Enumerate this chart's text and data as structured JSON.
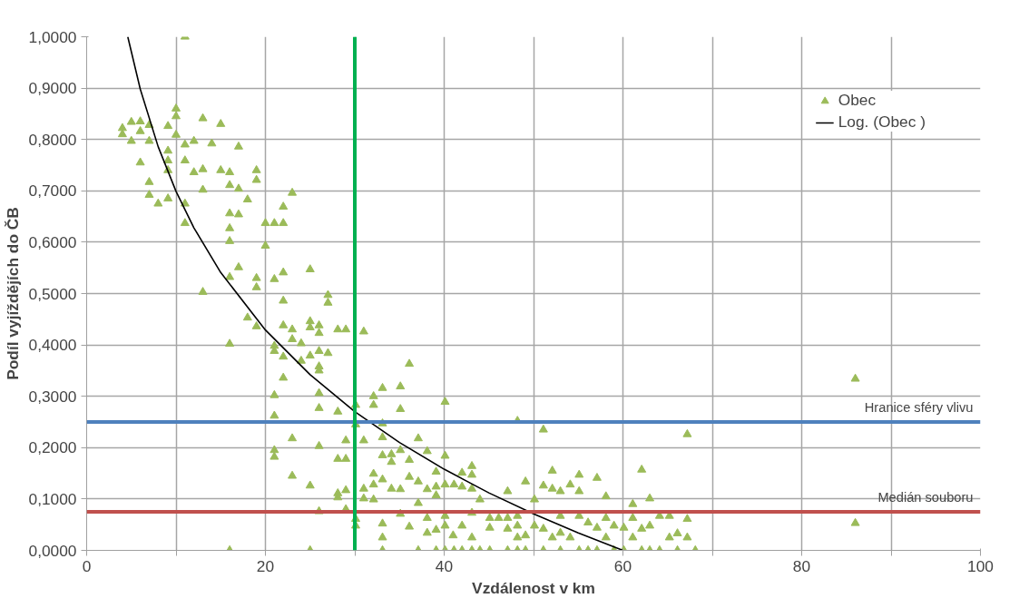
{
  "chart_data": {
    "type": "scatter",
    "xlabel": "Vzdálenost v km",
    "ylabel": "Podíl vyjíždějích do ČB",
    "xlim": [
      0,
      100
    ],
    "ylim": [
      0,
      1
    ],
    "xticks": [
      0,
      {
        "value": 10,
        "label": null
      },
      20,
      {
        "value": 30,
        "label": null
      },
      40,
      {
        "value": 50,
        "label": null
      },
      60,
      {
        "value": 70,
        "label": null
      },
      80,
      {
        "value": 90,
        "label": null
      },
      100
    ],
    "yticks": [
      {
        "value": 0,
        "label": "0,0000"
      },
      {
        "value": 0.1,
        "label": "0,1000"
      },
      {
        "value": 0.2,
        "label": "0,2000"
      },
      {
        "value": 0.3,
        "label": "0,3000"
      },
      {
        "value": 0.4,
        "label": "0,4000"
      },
      {
        "value": 0.5,
        "label": "0,5000"
      },
      {
        "value": 0.6,
        "label": "0,6000"
      },
      {
        "value": 0.7,
        "label": "0,7000"
      },
      {
        "value": 0.8,
        "label": "0,8000"
      },
      {
        "value": 0.9,
        "label": "0,9000"
      },
      {
        "value": 1,
        "label": "1,0000"
      }
    ],
    "grid": true,
    "legend": "top right",
    "series": [
      {
        "name": "Obec",
        "type": "scatter",
        "marker": "triangle",
        "color": "#9bbb59",
        "x": [
          11,
          4,
          5,
          6,
          4,
          5,
          6,
          7,
          7,
          10,
          10,
          9.1,
          10,
          13,
          15,
          11,
          12,
          14,
          17,
          6,
          9.1,
          9.1,
          9.1,
          11,
          12,
          13,
          15,
          16,
          19,
          19,
          7,
          13,
          16,
          17,
          18,
          23,
          7,
          8,
          9.1,
          11,
          11,
          16,
          17,
          22,
          20,
          21,
          22,
          16,
          16,
          20,
          25,
          17,
          16,
          19,
          19,
          22,
          21,
          13,
          22,
          27,
          27,
          18,
          19,
          22,
          23,
          25,
          25,
          26,
          26,
          28.1,
          29,
          31,
          16,
          21,
          21,
          23,
          24,
          22,
          24,
          25,
          26,
          27,
          26,
          26,
          22,
          21,
          26,
          26,
          28.1,
          30.1,
          21,
          30.1,
          23,
          26,
          29,
          31,
          21,
          21,
          28.1,
          29,
          23,
          25,
          28.1,
          28.1,
          29,
          31,
          31,
          26,
          29,
          30.1,
          30.1,
          16,
          25,
          36.1,
          33.1,
          35.1,
          32.1,
          32.1,
          35.1,
          40.1,
          33.1,
          48.2,
          51.1,
          67.2,
          33.1,
          37.1,
          33.1,
          34.1,
          34.1,
          35.1,
          36.1,
          38.1,
          40.1,
          43.1,
          43.1,
          42,
          39.1,
          32.1,
          33.1,
          36.1,
          37.1,
          52.1,
          55.1,
          57.1,
          62.1,
          49.1,
          51.1,
          54.1,
          32.1,
          34.1,
          35.1,
          38.1,
          39.1,
          40.1,
          41.1,
          42,
          43.1,
          47.1,
          52.1,
          53,
          55.1,
          32.1,
          37.1,
          39.1,
          44,
          50.1,
          58.1,
          63,
          61.1,
          35.1,
          38.1,
          40.1,
          43.1,
          45.1,
          46.1,
          47.1,
          48.2,
          53,
          55.1,
          58.1,
          61.1,
          64.1,
          67.2,
          65.2,
          33.1,
          36.1,
          38.1,
          39.1,
          40.1,
          42,
          45.1,
          47.1,
          48.2,
          50.1,
          51.1,
          53,
          56.1,
          57.1,
          59,
          60.1,
          62.1,
          63,
          66.1,
          33.1,
          41,
          43.1,
          48.2,
          49.1,
          52.1,
          54.1,
          58.1,
          61.1,
          65.2,
          67.2,
          33.1,
          37.1,
          39.1,
          40.1,
          41.1,
          42,
          43.1,
          44,
          45.1,
          47.1,
          48.2,
          49.1,
          51.1,
          53,
          55.1,
          56.1,
          57.1,
          59,
          60.1,
          62.1,
          63,
          64.1,
          66.1,
          68.1,
          86,
          86
        ],
        "values": [
          1.0,
          0.822,
          0.834,
          0.835,
          0.81,
          0.797,
          0.816,
          0.828,
          0.797,
          0.86,
          0.845,
          0.826,
          0.809,
          0.841,
          0.83,
          0.79,
          0.797,
          0.792,
          0.786,
          0.755,
          0.778,
          0.759,
          0.74,
          0.759,
          0.736,
          0.742,
          0.74,
          0.736,
          0.74,
          0.721,
          0.717,
          0.702,
          0.711,
          0.704,
          0.683,
          0.696,
          0.692,
          0.675,
          0.685,
          0.675,
          0.637,
          0.656,
          0.654,
          0.669,
          0.637,
          0.637,
          0.637,
          0.627,
          0.602,
          0.593,
          0.547,
          0.551,
          0.532,
          0.53,
          0.512,
          0.541,
          0.528,
          0.503,
          0.486,
          0.497,
          0.482,
          0.453,
          0.436,
          0.438,
          0.43,
          0.446,
          0.434,
          0.438,
          0.423,
          0.43,
          0.43,
          0.426,
          0.402,
          0.398,
          0.388,
          0.411,
          0.403,
          0.377,
          0.369,
          0.379,
          0.388,
          0.384,
          0.358,
          0.35,
          0.336,
          0.302,
          0.306,
          0.277,
          0.27,
          0.283,
          0.262,
          0.245,
          0.218,
          0.203,
          0.214,
          0.214,
          0.195,
          0.182,
          0.178,
          0.178,
          0.145,
          0.126,
          0.111,
          0.103,
          0.117,
          0.12,
          0.101,
          0.076,
          0.08,
          0.061,
          0.048,
          0.0,
          0.0,
          0.363,
          0.316,
          0.319,
          0.3,
          0.283,
          0.275,
          0.289,
          0.247,
          0.252,
          0.235,
          0.226,
          0.22,
          0.218,
          0.185,
          0.187,
          0.172,
          0.195,
          0.176,
          0.193,
          0.184,
          0.164,
          0.147,
          0.151,
          0.153,
          0.149,
          0.138,
          0.143,
          0.134,
          0.155,
          0.147,
          0.141,
          0.157,
          0.134,
          0.126,
          0.128,
          0.128,
          0.12,
          0.119,
          0.119,
          0.124,
          0.128,
          0.128,
          0.124,
          0.12,
          0.115,
          0.12,
          0.115,
          0.115,
          0.099,
          0.092,
          0.107,
          0.099,
          0.099,
          0.105,
          0.101,
          0.09,
          0.071,
          0.063,
          0.067,
          0.073,
          0.063,
          0.063,
          0.063,
          0.067,
          0.067,
          0.067,
          0.063,
          0.063,
          0.067,
          0.061,
          0.067,
          0.052,
          0.046,
          0.034,
          0.04,
          0.048,
          0.048,
          0.044,
          0.042,
          0.048,
          0.048,
          0.042,
          0.034,
          0.054,
          0.044,
          0.048,
          0.044,
          0.042,
          0.048,
          0.033,
          0.025,
          0.029,
          0.025,
          0.025,
          0.029,
          0.025,
          0.025,
          0.025,
          0.025,
          0.025,
          0.025,
          0,
          0,
          0,
          0,
          0,
          0,
          0,
          0,
          0,
          0,
          0,
          0,
          0,
          0,
          0,
          0,
          0,
          0,
          0,
          0,
          0,
          0,
          0,
          0,
          0.334,
          0.053
        ]
      },
      {
        "name": "Log. (Obec )",
        "type": "line",
        "color": "#000000",
        "marker": "none",
        "x": [
          4.6,
          6,
          8,
          10,
          12,
          15,
          20,
          25,
          30,
          35,
          40,
          45,
          50,
          55,
          60
        ],
        "values": [
          1.0,
          0.898,
          0.786,
          0.699,
          0.628,
          0.541,
          0.429,
          0.342,
          0.27,
          0.21,
          0.158,
          0.112,
          0.071,
          0.034,
          0.0
        ]
      }
    ],
    "ref_lines": [
      {
        "axis": "y",
        "value": 0.25,
        "label": "Hranice sféry vlivu",
        "color": "#4f81bd"
      },
      {
        "axis": "y",
        "value": 0.075,
        "label": "Medián souboru",
        "color": "#c0504d"
      },
      {
        "axis": "x",
        "value": 30,
        "color": "#00b050"
      }
    ]
  }
}
